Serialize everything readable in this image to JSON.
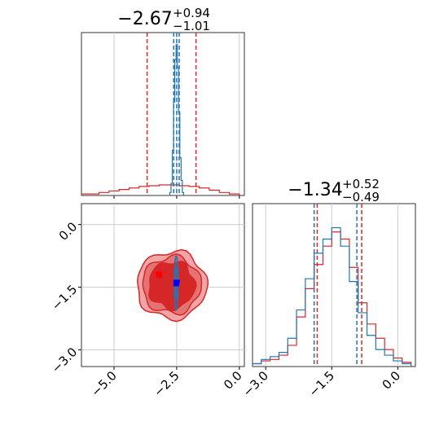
{
  "colors": {
    "red": "#d62728",
    "blue": "#1f77b4",
    "red_marker": "#ff0000",
    "blue_marker": "#0000ff",
    "grid": "#cccccc",
    "fill_inner": "#d62728",
    "fill_outer": "#f1a5a6"
  },
  "chart_data": [
    {
      "panel": "histogram-param-1",
      "type": "histogram",
      "title": {
        "main": "−2.67",
        "sup": "+0.94",
        "sub": "−1.01"
      },
      "xlim": [
        -6.3,
        0.2
      ],
      "series": [
        {
          "name": "",
          "color": "#d62728",
          "quantiles": [
            -3.68,
            -2.67,
            -1.73
          ],
          "shape": "broad",
          "x": [
            -6.2,
            -5.8,
            -5.4,
            -5.0,
            -4.6,
            -4.2,
            -3.8,
            -3.4,
            -3.0,
            -2.6,
            -2.2,
            -1.8,
            -1.4,
            -1.0,
            -0.6,
            -0.2
          ],
          "values": [
            0.01,
            0.01,
            0.02,
            0.03,
            0.04,
            0.05,
            0.06,
            0.065,
            0.07,
            0.07,
            0.065,
            0.06,
            0.05,
            0.035,
            0.02,
            0.01
          ]
        },
        {
          "name": "",
          "color": "#1f77b4",
          "quantiles": [
            -2.62,
            -2.5,
            -2.4
          ],
          "shape": "narrow",
          "x": [
            -2.8,
            -2.75,
            -2.7,
            -2.65,
            -2.6,
            -2.55,
            -2.5,
            -2.45,
            -2.4,
            -2.35,
            -2.3,
            -2.25,
            -2.2
          ],
          "values": [
            0.0,
            0.02,
            0.08,
            0.3,
            0.62,
            0.9,
            1.0,
            0.85,
            0.55,
            0.25,
            0.1,
            0.02,
            0.0
          ]
        }
      ]
    },
    {
      "panel": "corner-2d",
      "type": "contour",
      "xlim": [
        -6.3,
        0.2
      ],
      "ylim": [
        -3.4,
        0.5
      ],
      "x_ticks": [
        "−5.0",
        "−2.5",
        "0.0"
      ],
      "x_tick_values": [
        -5.0,
        -2.5,
        0.0
      ],
      "y_ticks": [
        "0.0",
        "−1.5",
        "−3.0"
      ],
      "y_tick_values": [
        0.0,
        -1.5,
        -3.0
      ],
      "series": [
        {
          "name": "",
          "color": "#d62728",
          "center": [
            -2.7,
            -1.45
          ],
          "sigma1_radius": [
            1.15,
            0.7
          ],
          "sigma2_radius": [
            2.25,
            1.3
          ],
          "marker": [
            -3.2,
            -1.2
          ]
        },
        {
          "name": "",
          "color": "#1f77b4",
          "center": [
            -2.52,
            -1.4
          ],
          "sigma1_radius": [
            0.07,
            0.75
          ],
          "sigma2_radius": [
            0.12,
            1.25
          ],
          "marker": [
            -2.5,
            -1.4
          ]
        }
      ],
      "extra_markers": [
        {
          "color": "#d62728",
          "x": -2.3,
          "y": -1.45
        }
      ]
    },
    {
      "panel": "histogram-param-2",
      "type": "histogram",
      "title": {
        "main": "−1.34",
        "sup": "+0.52",
        "sub": "−0.49"
      },
      "xlim": [
        -3.3,
        0.4
      ],
      "x_ticks": [
        "−3.0",
        "−1.5",
        "0.0"
      ],
      "x_tick_values": [
        -3.0,
        -1.5,
        0.0
      ],
      "series": [
        {
          "name": "",
          "color": "#d62728",
          "quantiles": [
            -1.83,
            -1.34,
            -0.82
          ],
          "x": [
            -3.2,
            -3.0,
            -2.8,
            -2.6,
            -2.4,
            -2.2,
            -2.0,
            -1.8,
            -1.6,
            -1.4,
            -1.2,
            -1.0,
            -0.8,
            -0.6,
            -0.4,
            -0.2,
            0.0,
            0.2
          ],
          "values": [
            0.02,
            0.04,
            0.05,
            0.08,
            0.15,
            0.35,
            0.55,
            0.72,
            0.85,
            0.95,
            0.9,
            0.7,
            0.45,
            0.3,
            0.2,
            0.12,
            0.06,
            0.03
          ]
        },
        {
          "name": "",
          "color": "#1f77b4",
          "quantiles": [
            -1.9,
            -1.4,
            -0.93
          ],
          "x": [
            -3.2,
            -3.0,
            -2.8,
            -2.6,
            -2.4,
            -2.2,
            -2.0,
            -1.8,
            -1.6,
            -1.4,
            -1.2,
            -1.0,
            -0.8,
            -0.6,
            -0.4,
            -0.2,
            0.0,
            0.2
          ],
          "values": [
            0.02,
            0.05,
            0.07,
            0.1,
            0.2,
            0.4,
            0.62,
            0.8,
            0.9,
            0.98,
            0.85,
            0.6,
            0.38,
            0.22,
            0.12,
            0.08,
            0.04,
            0.02
          ]
        }
      ]
    }
  ]
}
